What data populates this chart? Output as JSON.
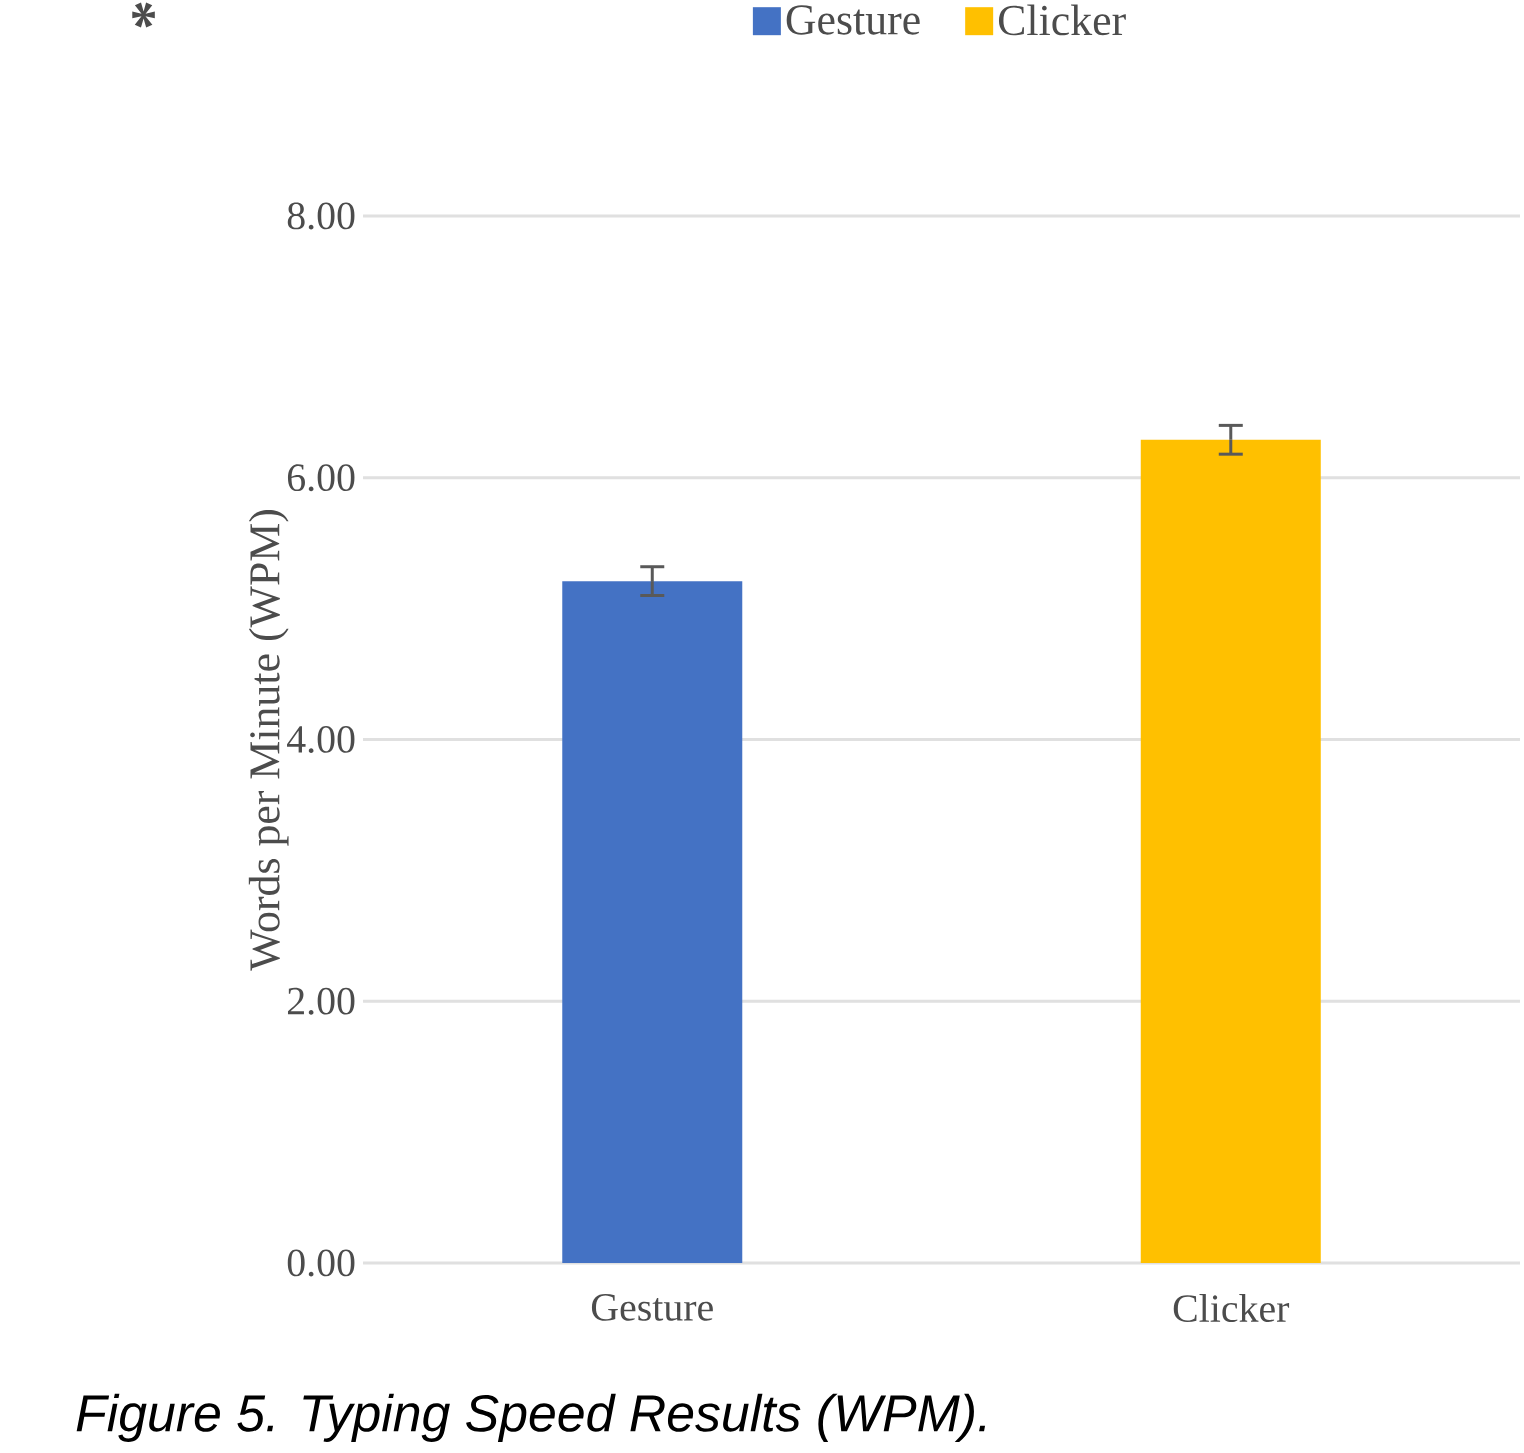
{
  "chart_data": {
    "type": "bar",
    "ylabel": "Words per Minute (WPM)",
    "categories": [
      "Gesture",
      "Clicker"
    ],
    "series": [
      {
        "name": "Gesture",
        "color": "#4472c4",
        "values": [
          5.21,
          null
        ],
        "errors": [
          0.11,
          null
        ]
      },
      {
        "name": "Clicker",
        "color": "#ffc000",
        "values": [
          null,
          6.29
        ],
        "errors": [
          null,
          0.11
        ]
      }
    ],
    "ylim": [
      0,
      8
    ],
    "yticks": [
      {
        "value": 0,
        "label": "0.00"
      },
      {
        "value": 2,
        "label": "2.00"
      },
      {
        "value": 4,
        "label": "4.00"
      },
      {
        "value": 6,
        "label": "6.00"
      },
      {
        "value": 8,
        "label": "8.00"
      }
    ],
    "grid": "y",
    "legend": "top",
    "annotations": [
      "*",
      "Figure 5. Typing Speed Results (WPM)."
    ]
  }
}
